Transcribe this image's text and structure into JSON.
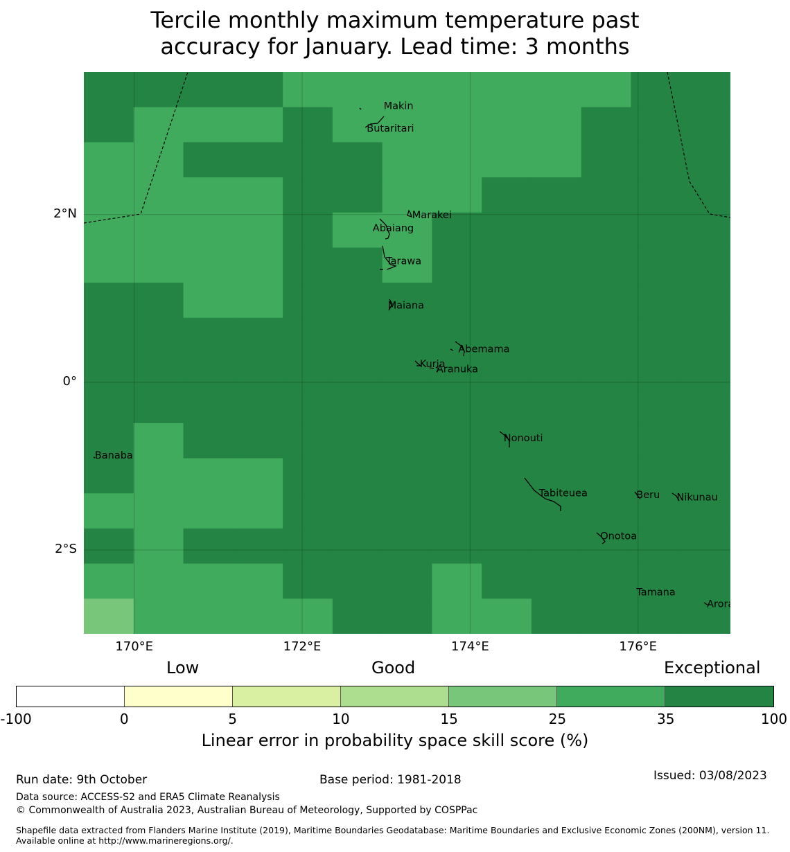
{
  "title_line1": "Tercile monthly maximum temperature past",
  "title_line2": "accuracy for January. Lead time: 3 months",
  "map": {
    "lon_range": [
      169.4,
      177.1
    ],
    "lat_range": [
      -3.0,
      3.7
    ],
    "y_ticks": [
      {
        "lat": 2,
        "label": "2°N"
      },
      {
        "lat": 0,
        "label": "0°"
      },
      {
        "lat": -2,
        "label": "2°S"
      }
    ],
    "x_ticks": [
      {
        "lon": 170,
        "label": "170°E"
      },
      {
        "lon": 172,
        "label": "172°E"
      },
      {
        "lon": 174,
        "label": "174°E"
      },
      {
        "lon": 176,
        "label": "176°E"
      }
    ],
    "legend_colors": {
      "exceptional": "#238443",
      "very_good": "#41ab5d",
      "good": "#78c679"
    },
    "skill_grid_rows": [
      "AAAABBBBBBBAA",
      "ABBBABBBBBAAA",
      "BBAAAABBBBAAA",
      "BBBBAABBAAAAA",
      "BBBBABBAAAAAA",
      "BBBBAABAAAAAA",
      "AABBAAAAAAAAA",
      "AAAAAAAAAAAAA",
      "AAAAAAAAAAAAA",
      "AAAAAAAAAAAAA",
      "ABAAAAAAAAAAA",
      "ABBBAAAAAAAAA",
      "BBBBAAAAAAAAA",
      "ABAAAAAAAAAAA",
      "BBBBAAABAAAAA",
      "CBBBBAABBAAAA"
    ],
    "islands": [
      {
        "name": "Makin",
        "lon": 172.97,
        "lat": 3.3
      },
      {
        "name": "Butaritari",
        "lon": 172.77,
        "lat": 3.03
      },
      {
        "name": "Marakei",
        "lon": 173.31,
        "lat": 2.0
      },
      {
        "name": "Abaiang",
        "lon": 172.84,
        "lat": 1.84
      },
      {
        "name": "Tarawa",
        "lon": 173.0,
        "lat": 1.45
      },
      {
        "name": "Maiana",
        "lon": 173.02,
        "lat": 0.92
      },
      {
        "name": "Abemama",
        "lon": 173.86,
        "lat": 0.4
      },
      {
        "name": "Kuria",
        "lon": 173.4,
        "lat": 0.22
      },
      {
        "name": "Aranuka",
        "lon": 173.6,
        "lat": 0.16
      },
      {
        "name": "Nonouti",
        "lon": 174.4,
        "lat": -0.66
      },
      {
        "name": "Banaba",
        "lon": 169.53,
        "lat": -0.87
      },
      {
        "name": "Tabiteuea",
        "lon": 174.82,
        "lat": -1.32
      },
      {
        "name": "Beru",
        "lon": 175.98,
        "lat": -1.34
      },
      {
        "name": "Nikunau",
        "lon": 176.46,
        "lat": -1.37
      },
      {
        "name": "Onotoa",
        "lon": 175.55,
        "lat": -1.83
      },
      {
        "name": "Tamana",
        "lon": 175.98,
        "lat": -2.5
      },
      {
        "name": "Arorae",
        "lon": 176.82,
        "lat": -2.64
      }
    ]
  },
  "colorbar": {
    "category_labels": [
      "Low",
      "Good",
      "Exceptional"
    ],
    "ticks": [
      "-100",
      "0",
      "5",
      "10",
      "15",
      "25",
      "35",
      "100"
    ],
    "colors": [
      "#ffffff",
      "#ffffcc",
      "#d9f0a3",
      "#addd8e",
      "#78c679",
      "#41ab5d",
      "#238443"
    ],
    "label": "Linear error in probability space skill score (%)"
  },
  "footer": {
    "run_date": "Run date: 9th October",
    "base_period": "Base period: 1981-2018",
    "issued": "Issued: 03/08/2023",
    "data_source": "Data source: ACCESS-S2 and ERA5 Climate Reanalysis",
    "copyright": "© Commonwealth of Australia 2023, Australian Bureau of Meteorology, Supported by COSPPac",
    "shapefile": "Shapefile data extracted from Flanders Marine Institute (2019), Maritime Boundaries Geodatabase: Maritime Boundaries and Exclusive Economic Zones (200NM), version 11. Available online at http://www.marineregions.org/."
  }
}
